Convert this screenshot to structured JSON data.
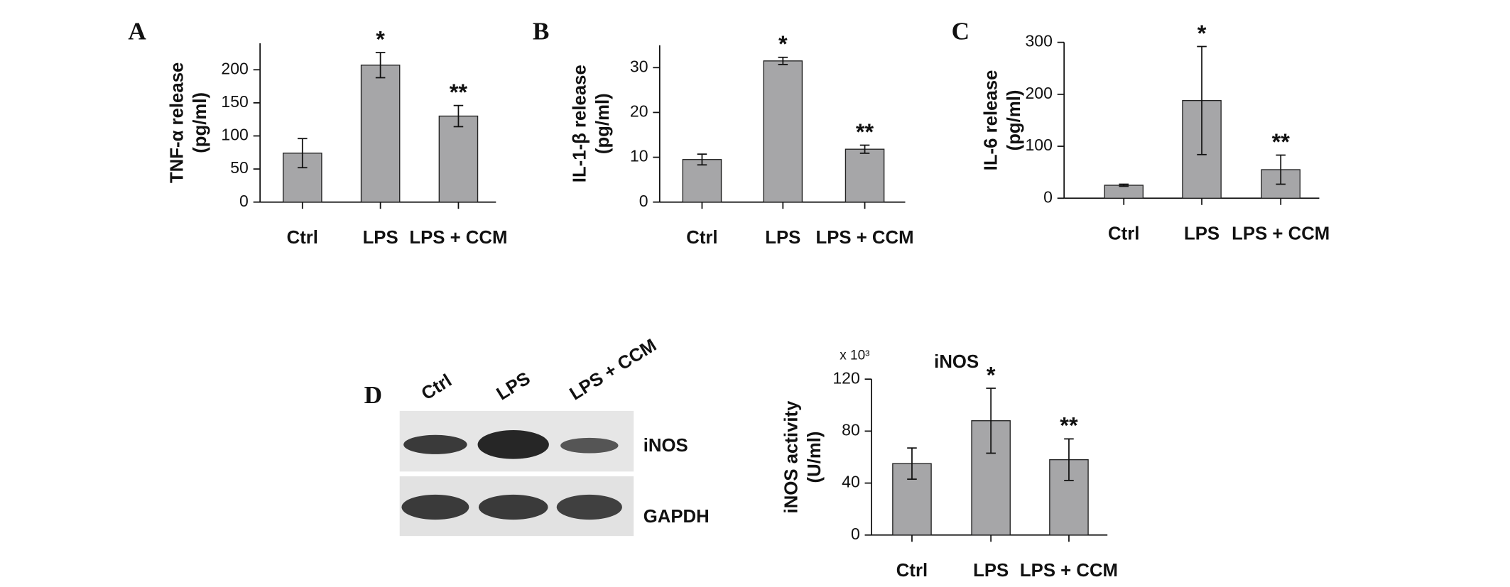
{
  "chart_data": [
    {
      "type": "bar",
      "panel": "A",
      "ylabel": [
        "TNF-α release",
        "(pg/ml)"
      ],
      "categories": [
        "Ctrl",
        "LPS",
        "LPS + CCM"
      ],
      "values": [
        74,
        207,
        130
      ],
      "errors": [
        22,
        19,
        16
      ],
      "annotations": [
        null,
        "*",
        "**"
      ],
      "color": "#a6a6a8",
      "ylim": [
        0,
        240
      ],
      "yticks": [
        0,
        50,
        100,
        150,
        200
      ]
    },
    {
      "type": "bar",
      "panel": "B",
      "ylabel": [
        "IL-1-β release",
        "(pg/ml)"
      ],
      "categories": [
        "Ctrl",
        "LPS",
        "LPS + CCM"
      ],
      "values": [
        9.5,
        31.5,
        11.8
      ],
      "errors": [
        1.2,
        0.8,
        0.9
      ],
      "annotations": [
        null,
        "*",
        "**"
      ],
      "color": "#a6a6a8",
      "ylim": [
        0,
        35
      ],
      "yticks": [
        0,
        10,
        20,
        30
      ]
    },
    {
      "type": "bar",
      "panel": "C",
      "ylabel": [
        "IL-6 release",
        "(pg/ml)"
      ],
      "categories": [
        "Ctrl",
        "LPS",
        "LPS + CCM"
      ],
      "values": [
        25,
        188,
        55
      ],
      "errors": [
        2,
        104,
        28
      ],
      "annotations": [
        null,
        "*",
        "**"
      ],
      "color": "#a6a6a8",
      "ylim": [
        0,
        300
      ],
      "yticks": [
        0,
        100,
        200,
        300
      ]
    },
    {
      "type": "bar",
      "title": "iNOS",
      "multiplier": "x 10³",
      "ylabel": [
        "iNOS activity",
        "(U/ml)"
      ],
      "categories": [
        "Ctrl",
        "LPS",
        "LPS + CCM"
      ],
      "values": [
        55,
        88,
        58
      ],
      "errors": [
        12,
        25,
        16
      ],
      "annotations": [
        null,
        "*",
        "**"
      ],
      "color": "#a6a6a8",
      "ylim": [
        0,
        120
      ],
      "yticks": [
        0,
        40,
        80,
        120
      ]
    }
  ],
  "blot": {
    "panel": "D",
    "lanes": [
      "Ctrl",
      "LPS",
      "LPS + CCM"
    ],
    "bands": [
      "iNOS",
      "GAPDH"
    ]
  }
}
